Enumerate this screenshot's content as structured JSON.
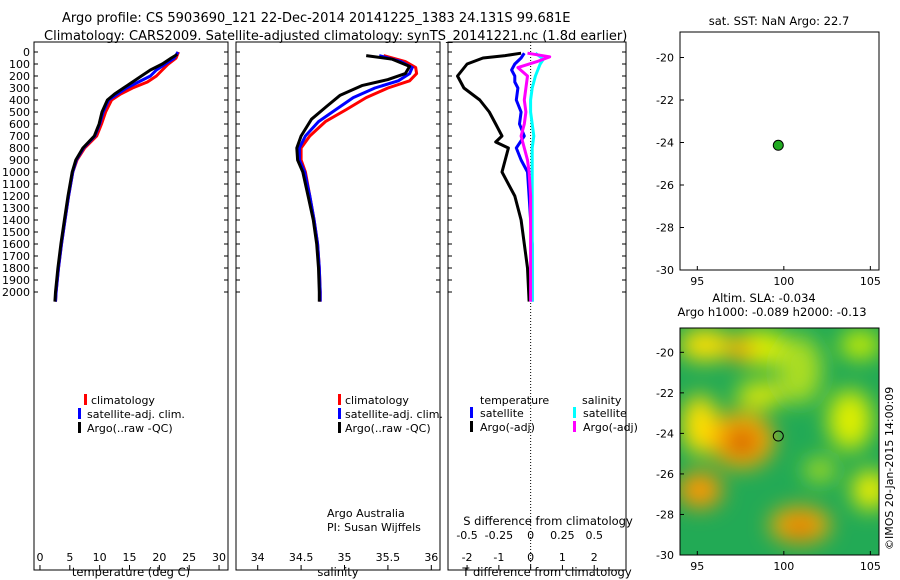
{
  "titles": {
    "line1": "Argo profile: CS 5903690_121 22-Dec-2014 20141225_1383 24.131S 99.681E",
    "line2": "Climatology: CARS2009. Satellite-adjusted climatology: synTS_20141221.nc (1.8d earlier)",
    "sst": "sat. SST: NaN Argo: 22.7",
    "sla1": "Altim. SLA: -0.034",
    "sla2": "Argo h1000: -0.089 h2000: -0.13",
    "credit": "©IMOS 20-Jan-2015 14:00:09",
    "argo_aus1": "Argo Australia",
    "argo_aus2": "PI: Susan Wijffels"
  },
  "colors": {
    "climatology": "#ff0000",
    "satellite": "#0000ff",
    "argo": "#000000",
    "sal_sat": "#00ffff",
    "sal_argo": "#ff00ff",
    "dot": "#22aa22"
  },
  "chart_data": [
    {
      "type": "line",
      "xlabel": "temperature (deg C)",
      "ylabel": "",
      "xlim": [
        -1,
        31.5
      ],
      "ylim": [
        2100,
        0
      ],
      "xticks": [
        0,
        5,
        10,
        15,
        20,
        25,
        30
      ],
      "yticks": [
        0,
        100,
        200,
        300,
        400,
        500,
        600,
        700,
        800,
        900,
        1000,
        1100,
        1200,
        1300,
        1400,
        1500,
        1600,
        1700,
        1800,
        1900,
        2000
      ],
      "legend": [
        "climatology",
        "satellite-adj. clim.",
        "Argo(..raw -QC)"
      ],
      "series": [
        {
          "name": "climatology",
          "color": "#ff0000",
          "points": [
            [
              23.2,
              0
            ],
            [
              22.8,
              50
            ],
            [
              21.5,
              100
            ],
            [
              20.5,
              150
            ],
            [
              19.5,
              200
            ],
            [
              18,
              250
            ],
            [
              15.5,
              300
            ],
            [
              13.5,
              350
            ],
            [
              12,
              400
            ],
            [
              11,
              500
            ],
            [
              10.3,
              600
            ],
            [
              9.5,
              700
            ],
            [
              7.5,
              800
            ],
            [
              6.2,
              900
            ],
            [
              5.5,
              1000
            ],
            [
              4.8,
              1200
            ],
            [
              4.2,
              1400
            ],
            [
              3.6,
              1600
            ],
            [
              3.1,
              1800
            ],
            [
              2.7,
              2000
            ],
            [
              2.6,
              2080
            ]
          ]
        },
        {
          "name": "satellite-adj. clim.",
          "color": "#0000ff",
          "points": [
            [
              23.1,
              0
            ],
            [
              22.5,
              50
            ],
            [
              21,
              100
            ],
            [
              19.5,
              150
            ],
            [
              18.5,
              200
            ],
            [
              16.5,
              250
            ],
            [
              14.5,
              300
            ],
            [
              13,
              350
            ],
            [
              11.5,
              400
            ],
            [
              10.6,
              500
            ],
            [
              10,
              600
            ],
            [
              9.2,
              700
            ],
            [
              7.3,
              800
            ],
            [
              6.1,
              900
            ],
            [
              5.5,
              1000
            ],
            [
              4.8,
              1200
            ],
            [
              4.2,
              1400
            ],
            [
              3.6,
              1600
            ],
            [
              3.1,
              1800
            ],
            [
              2.7,
              2000
            ],
            [
              2.6,
              2080
            ]
          ]
        },
        {
          "name": "Argo(..raw -QC)",
          "color": "#000000",
          "points": [
            [
              23,
              20
            ],
            [
              22,
              50
            ],
            [
              20.5,
              100
            ],
            [
              18.5,
              150
            ],
            [
              17,
              200
            ],
            [
              15.5,
              250
            ],
            [
              14,
              300
            ],
            [
              12.5,
              350
            ],
            [
              11.3,
              400
            ],
            [
              10.4,
              500
            ],
            [
              9.9,
              600
            ],
            [
              9.1,
              700
            ],
            [
              7.2,
              800
            ],
            [
              6,
              900
            ],
            [
              5.4,
              1000
            ],
            [
              4.7,
              1200
            ],
            [
              4.1,
              1400
            ],
            [
              3.5,
              1600
            ],
            [
              3,
              1800
            ],
            [
              2.6,
              2000
            ],
            [
              2.5,
              2080
            ]
          ]
        }
      ]
    },
    {
      "type": "line",
      "xlabel": "salinity",
      "ylabel": "",
      "xlim": [
        33.75,
        36.1
      ],
      "ylim": [
        2100,
        0
      ],
      "xticks": [
        34,
        34.5,
        35,
        35.5,
        36
      ],
      "legend": [
        "climatology",
        "satellite-adj. clim.",
        "Argo(..raw -QC)"
      ],
      "series": [
        {
          "name": "climatology",
          "color": "#ff0000",
          "points": [
            [
              35.45,
              30
            ],
            [
              35.7,
              80
            ],
            [
              35.82,
              130
            ],
            [
              35.83,
              180
            ],
            [
              35.75,
              240
            ],
            [
              35.5,
              300
            ],
            [
              35.25,
              380
            ],
            [
              35.02,
              480
            ],
            [
              34.78,
              580
            ],
            [
              34.6,
              700
            ],
            [
              34.5,
              800
            ],
            [
              34.5,
              900
            ],
            [
              34.55,
              1000
            ],
            [
              34.6,
              1200
            ],
            [
              34.65,
              1400
            ],
            [
              34.69,
              1600
            ],
            [
              34.71,
              1800
            ],
            [
              34.72,
              2000
            ],
            [
              34.72,
              2080
            ]
          ]
        },
        {
          "name": "satellite-adj. clim.",
          "color": "#0000ff",
          "points": [
            [
              35.4,
              30
            ],
            [
              35.65,
              80
            ],
            [
              35.78,
              130
            ],
            [
              35.75,
              180
            ],
            [
              35.62,
              240
            ],
            [
              35.35,
              300
            ],
            [
              35.1,
              380
            ],
            [
              34.9,
              480
            ],
            [
              34.7,
              580
            ],
            [
              34.55,
              700
            ],
            [
              34.48,
              800
            ],
            [
              34.48,
              900
            ],
            [
              34.54,
              1000
            ],
            [
              34.6,
              1200
            ],
            [
              34.65,
              1400
            ],
            [
              34.69,
              1600
            ],
            [
              34.71,
              1800
            ],
            [
              34.72,
              2000
            ],
            [
              34.72,
              2080
            ]
          ]
        },
        {
          "name": "Argo(..raw -QC)",
          "color": "#000000",
          "points": [
            [
              35.25,
              30
            ],
            [
              35.55,
              60
            ],
            [
              35.75,
              120
            ],
            [
              35.7,
              180
            ],
            [
              35.5,
              230
            ],
            [
              35.2,
              280
            ],
            [
              34.95,
              360
            ],
            [
              34.8,
              450
            ],
            [
              34.62,
              560
            ],
            [
              34.5,
              700
            ],
            [
              34.45,
              800
            ],
            [
              34.46,
              900
            ],
            [
              34.52,
              1000
            ],
            [
              34.58,
              1200
            ],
            [
              34.64,
              1400
            ],
            [
              34.68,
              1600
            ],
            [
              34.7,
              1800
            ],
            [
              34.71,
              2000
            ],
            [
              34.71,
              2080
            ]
          ]
        }
      ]
    },
    {
      "type": "line",
      "xlabel": "T difference from climatology",
      "top_label": "S difference from climatology",
      "xlim": [
        -2.6,
        3
      ],
      "ylim": [
        2100,
        0
      ],
      "xticks": [
        -2,
        -1,
        0,
        1,
        2
      ],
      "top_ticks": [
        "-0.5",
        "-0.25",
        "0",
        "0.25",
        "0.5"
      ],
      "legend_titles": [
        "temperature",
        "salinity"
      ],
      "legend": [
        "satellite",
        "Argo(-adj)",
        "satellite",
        "Argo(-adj)"
      ],
      "series": [
        {
          "name": "satellite",
          "color": "#0000ff",
          "points": [
            [
              -0.2,
              10
            ],
            [
              -0.3,
              50
            ],
            [
              -0.5,
              100
            ],
            [
              -0.6,
              150
            ],
            [
              -0.5,
              200
            ],
            [
              -0.5,
              250
            ],
            [
              -0.4,
              300
            ],
            [
              -0.45,
              400
            ],
            [
              -0.3,
              500
            ],
            [
              -0.35,
              600
            ],
            [
              -0.2,
              700
            ],
            [
              -0.45,
              800
            ],
            [
              -0.3,
              900
            ],
            [
              -0.1,
              1000
            ],
            [
              -0.05,
              1200
            ],
            [
              0,
              1400
            ],
            [
              0.05,
              1600
            ],
            [
              0.05,
              1800
            ],
            [
              0.05,
              2080
            ]
          ]
        },
        {
          "name": "Argo(-adj)",
          "color": "#000000",
          "points": [
            [
              -0.3,
              10
            ],
            [
              -0.8,
              30
            ],
            [
              -1.5,
              50
            ],
            [
              -2,
              100
            ],
            [
              -2.3,
              200
            ],
            [
              -2.1,
              300
            ],
            [
              -1.6,
              400
            ],
            [
              -1.3,
              500
            ],
            [
              -1.1,
              600
            ],
            [
              -0.9,
              700
            ],
            [
              -1.1,
              750
            ],
            [
              -0.7,
              800
            ],
            [
              -0.8,
              900
            ],
            [
              -0.9,
              1000
            ],
            [
              -0.5,
              1200
            ],
            [
              -0.3,
              1400
            ],
            [
              -0.2,
              1600
            ],
            [
              -0.1,
              1800
            ],
            [
              -0.05,
              2080
            ]
          ]
        },
        {
          "name": "satellite",
          "color": "#00ffff",
          "points": [
            [
              0.15,
              10
            ],
            [
              0.4,
              60
            ],
            [
              0.3,
              100
            ],
            [
              0.15,
              200
            ],
            [
              0.05,
              300
            ],
            [
              0,
              400
            ],
            [
              0,
              500
            ],
            [
              0.05,
              600
            ],
            [
              0.1,
              700
            ],
            [
              0.05,
              800
            ],
            [
              0.05,
              900
            ],
            [
              0.05,
              1000
            ],
            [
              0.05,
              1200
            ],
            [
              0.05,
              1400
            ],
            [
              0.05,
              1600
            ],
            [
              0.05,
              1800
            ],
            [
              0.05,
              2080
            ]
          ]
        },
        {
          "name": "Argo(-adj)",
          "color": "#ff00ff",
          "points": [
            [
              -0.1,
              10
            ],
            [
              0.6,
              40
            ],
            [
              0.2,
              80
            ],
            [
              -0.4,
              130
            ],
            [
              -0.1,
              200
            ],
            [
              -0.15,
              300
            ],
            [
              -0.2,
              400
            ],
            [
              -0.15,
              500
            ],
            [
              -0.2,
              600
            ],
            [
              -0.3,
              700
            ],
            [
              -0.2,
              800
            ],
            [
              -0.1,
              900
            ],
            [
              -0.05,
              1000
            ],
            [
              0,
              1200
            ],
            [
              0,
              1400
            ],
            [
              0,
              1600
            ],
            [
              0,
              1800
            ],
            [
              0,
              2080
            ]
          ]
        }
      ]
    },
    {
      "type": "scatter",
      "title": "sat. SST: NaN Argo: 22.7",
      "xlim": [
        94,
        105.5
      ],
      "ylim": [
        -30,
        -18.8
      ],
      "xticks": [
        95,
        100,
        105
      ],
      "yticks": [
        -20,
        -22,
        -24,
        -26,
        -28,
        -30
      ],
      "points": [
        [
          99.68,
          -24.13
        ]
      ]
    },
    {
      "type": "heatmap",
      "title": "Altim. SLA: -0.034",
      "xlim": [
        94,
        105.5
      ],
      "ylim": [
        -30,
        -18.8
      ],
      "xticks": [
        95,
        100,
        105
      ],
      "yticks": [
        -20,
        -22,
        -24,
        -26,
        -28,
        -30
      ],
      "points": [
        [
          99.68,
          -24.13
        ]
      ]
    }
  ]
}
